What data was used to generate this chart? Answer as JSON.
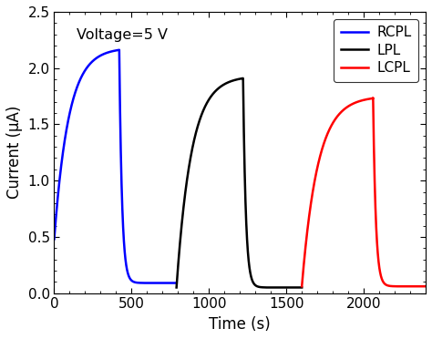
{
  "title_annotation": "Voltage=5 V",
  "xlabel": "Time (s)",
  "ylabel": "Current (μA)",
  "xlim": [
    0,
    2400
  ],
  "ylim": [
    0,
    2.5
  ],
  "xticks": [
    0,
    500,
    1000,
    1500,
    2000
  ],
  "yticks": [
    0.0,
    0.5,
    1.0,
    1.5,
    2.0,
    2.5
  ],
  "legend_entries": [
    "RCPL",
    "LPL",
    "LCPL"
  ],
  "line_colors": [
    "#0000ff",
    "#000000",
    "#ff0000"
  ],
  "line_width": 1.8,
  "background_color": "#ffffff",
  "curves": {
    "blue": {
      "t_start": 0,
      "t_rise_end": 420,
      "t_drop_start": 420,
      "t_drop_end": 560,
      "t_flat_end": 790,
      "peak_val": 2.18,
      "base_val": 0.09,
      "start_val": 0.48
    },
    "black": {
      "t_start": 790,
      "t_rise_end": 1220,
      "t_drop_start": 1220,
      "t_drop_end": 1360,
      "t_flat_end": 1600,
      "peak_val": 1.93,
      "base_val": 0.05,
      "start_val": 0.05
    },
    "red": {
      "t_start": 1600,
      "t_rise_end": 2060,
      "t_drop_start": 2060,
      "t_drop_end": 2200,
      "t_flat_end": 2400,
      "peak_val": 1.75,
      "base_val": 0.06,
      "start_val": 0.06
    }
  }
}
